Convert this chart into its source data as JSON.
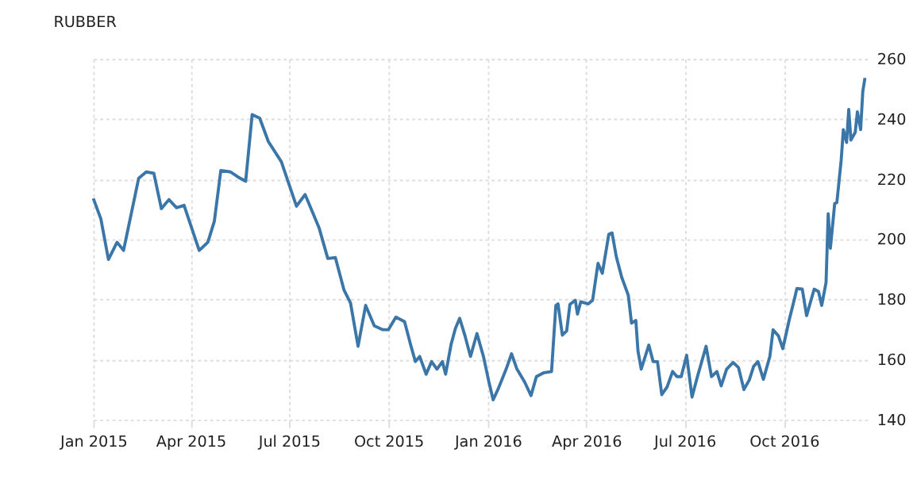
{
  "chart_data": {
    "type": "line",
    "title": "RUBBER",
    "grid": true,
    "marker": "none",
    "line_style": "solid",
    "xlim": [
      "2015-01-01",
      "2016-12-17"
    ],
    "xticks": [
      {
        "value": "2015-01-01",
        "label": "Jan 2015"
      },
      {
        "value": "2015-04-01",
        "label": "Apr 2015"
      },
      {
        "value": "2015-07-01",
        "label": "Jul 2015"
      },
      {
        "value": "2015-10-01",
        "label": "Oct 2015"
      },
      {
        "value": "2016-01-01",
        "label": "Jan 2016"
      },
      {
        "value": "2016-04-01",
        "label": "Apr 2016"
      },
      {
        "value": "2016-07-01",
        "label": "Jul 2016"
      },
      {
        "value": "2016-10-01",
        "label": "Oct 2016"
      }
    ],
    "ylim": [
      140,
      260
    ],
    "yticks": [
      140,
      160,
      180,
      200,
      220,
      240,
      260
    ],
    "x": [
      "2015-01-01",
      "2015-01-08",
      "2015-01-15",
      "2015-01-23",
      "2015-01-29",
      "2015-02-12",
      "2015-02-19",
      "2015-02-26",
      "2015-03-05",
      "2015-03-12",
      "2015-03-19",
      "2015-03-26",
      "2015-04-09",
      "2015-04-17",
      "2015-04-23",
      "2015-04-29",
      "2015-05-08",
      "2015-05-15",
      "2015-05-22",
      "2015-05-28",
      "2015-06-04",
      "2015-06-12",
      "2015-06-24",
      "2015-07-08",
      "2015-07-16",
      "2015-07-29",
      "2015-08-06",
      "2015-08-13",
      "2015-08-21",
      "2015-08-27",
      "2015-09-03",
      "2015-09-10",
      "2015-09-18",
      "2015-09-26",
      "2015-10-01",
      "2015-10-08",
      "2015-10-16",
      "2015-10-22",
      "2015-10-26",
      "2015-10-30",
      "2015-11-05",
      "2015-11-10",
      "2015-11-15",
      "2015-11-20",
      "2015-11-23",
      "2015-11-28",
      "2015-12-02",
      "2015-12-06",
      "2015-12-11",
      "2015-12-16",
      "2015-12-22",
      "2015-12-28",
      "2016-01-02",
      "2016-01-06",
      "2016-01-11",
      "2016-01-18",
      "2016-01-23",
      "2016-01-28",
      "2016-02-04",
      "2016-02-10",
      "2016-02-15",
      "2016-02-22",
      "2016-02-29",
      "2016-03-04",
      "2016-03-06",
      "2016-03-10",
      "2016-03-14",
      "2016-03-17",
      "2016-03-22",
      "2016-03-24",
      "2016-03-27",
      "2016-04-03",
      "2016-04-07",
      "2016-04-12",
      "2016-04-16",
      "2016-04-22",
      "2016-04-25",
      "2016-04-29",
      "2016-05-04",
      "2016-05-10",
      "2016-05-13",
      "2016-05-17",
      "2016-05-19",
      "2016-05-22",
      "2016-05-29",
      "2016-06-02",
      "2016-06-06",
      "2016-06-10",
      "2016-06-15",
      "2016-06-20",
      "2016-06-24",
      "2016-06-28",
      "2016-07-03",
      "2016-07-08",
      "2016-07-13",
      "2016-07-17",
      "2016-07-21",
      "2016-07-26",
      "2016-07-31",
      "2016-08-04",
      "2016-08-09",
      "2016-08-15",
      "2016-08-20",
      "2016-08-25",
      "2016-08-30",
      "2016-09-03",
      "2016-09-07",
      "2016-09-12",
      "2016-09-18",
      "2016-09-21",
      "2016-09-26",
      "2016-09-30",
      "2016-10-06",
      "2016-10-11",
      "2016-10-13",
      "2016-10-18",
      "2016-10-22",
      "2016-10-29",
      "2016-11-02",
      "2016-11-05",
      "2016-11-09",
      "2016-11-11",
      "2016-11-13",
      "2016-11-17",
      "2016-11-19",
      "2016-11-23",
      "2016-11-25",
      "2016-11-28",
      "2016-11-30",
      "2016-12-02",
      "2016-12-06",
      "2016-12-08",
      "2016-12-11",
      "2016-12-13",
      "2016-12-15"
    ],
    "series": [
      {
        "color": "#3a76a8",
        "values": [
          213.6,
          206.8,
          193.3,
          199,
          196.3,
          220.3,
          222.4,
          222,
          210.2,
          213.2,
          210.5,
          211.3,
          196.3,
          199,
          206,
          222.9,
          222.4,
          220.7,
          219.3,
          241.5,
          240.3,
          232.5,
          225.8,
          211,
          214.9,
          203.7,
          193.6,
          193.9,
          183.1,
          178.8,
          164.4,
          178,
          171.2,
          169.9,
          169.9,
          174.1,
          172.6,
          164.4,
          159.3,
          161,
          155.1,
          159.3,
          156.8,
          159.3,
          155.1,
          164.9,
          170.3,
          173.7,
          167.8,
          161,
          168.6,
          161,
          152.6,
          146.6,
          150.5,
          156.8,
          161.9,
          156.8,
          152.6,
          148,
          154.3,
          155.6,
          156,
          178,
          178.5,
          168.1,
          169.5,
          178.3,
          179.7,
          175.1,
          179.2,
          178.5,
          179.7,
          192,
          188.7,
          201.7,
          202.1,
          194.1,
          187.3,
          181.4,
          172.1,
          173,
          162.8,
          156.8,
          164.8,
          159.3,
          159.3,
          148.3,
          150.9,
          156,
          154.3,
          154.3,
          161.4,
          147.5,
          154.3,
          159.3,
          164.4,
          154.3,
          156,
          151.2,
          156.8,
          159,
          157.3,
          150,
          153.2,
          157.7,
          159.3,
          153.4,
          161,
          169.9,
          167.8,
          163.6,
          173.3,
          180.5,
          183.6,
          183.4,
          174.6,
          183.4,
          182.6,
          178,
          185.6,
          208.5,
          197,
          211.9,
          212.2,
          226.3,
          236.5,
          232.2,
          243.2,
          233,
          235.6,
          242.4,
          236.5,
          249.2,
          253.7
        ]
      }
    ]
  }
}
